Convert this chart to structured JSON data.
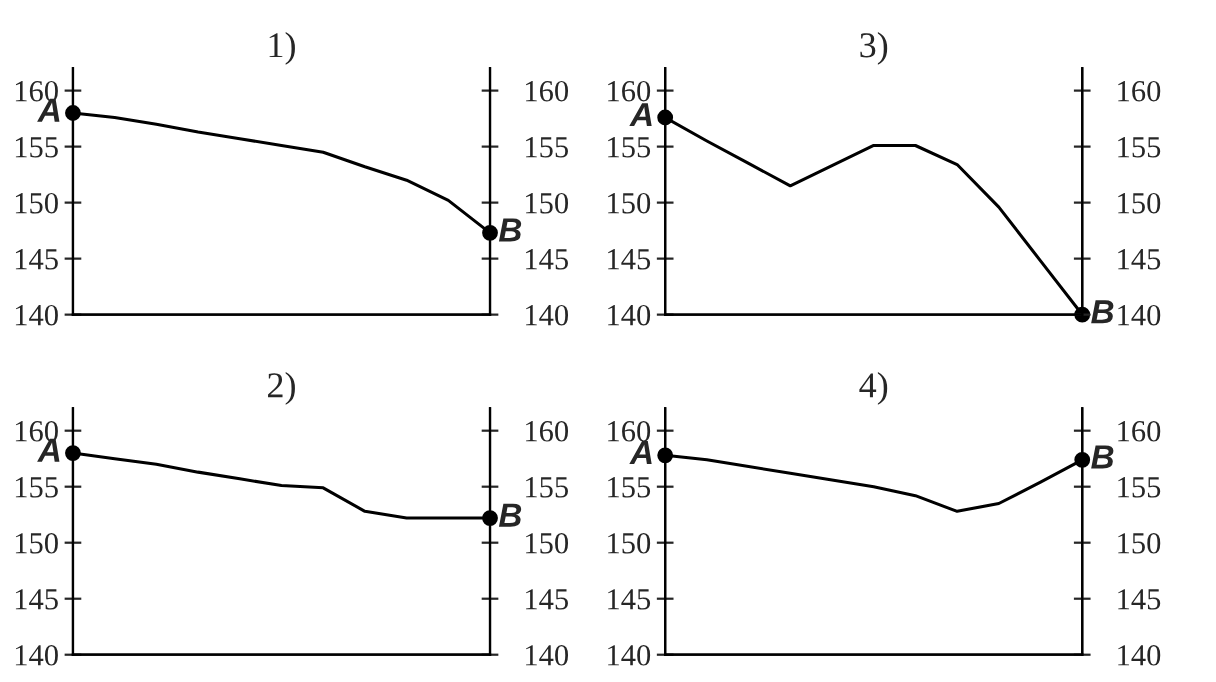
{
  "chart_data": [
    {
      "type": "line",
      "title": "1)",
      "categories": [
        null,
        null,
        null,
        null,
        null,
        null,
        null,
        null,
        null,
        null,
        null
      ],
      "series": [
        {
          "color": "#000000",
          "values": [
            158,
            157.6,
            157.0,
            156.3,
            155.7,
            155.1,
            154.5,
            153.2,
            152.0,
            150.2,
            147.3
          ]
        },
        {
          "type": "scatter",
          "color": "#000000",
          "values": [
            158,
            null,
            null,
            null,
            null,
            null,
            null,
            null,
            null,
            null,
            147.3
          ]
        }
      ],
      "ylim": [
        140,
        162
      ],
      "yticks": [
        140,
        145,
        150,
        155,
        160
      ],
      "y2lim": [
        140,
        162
      ],
      "y2ticks": [
        140,
        145,
        150,
        155,
        160
      ],
      "annotations": [
        "A",
        "B"
      ]
    },
    {
      "type": "line",
      "title": "2)",
      "categories": [
        null,
        null,
        null,
        null,
        null,
        null,
        null,
        null,
        null,
        null,
        null
      ],
      "series": [
        {
          "color": "#000000",
          "values": [
            158,
            157.5,
            157.0,
            156.3,
            155.7,
            155.1,
            154.9,
            152.8,
            152.2,
            152.2,
            152.2
          ]
        },
        {
          "type": "scatter",
          "color": "#000000",
          "values": [
            158,
            null,
            null,
            null,
            null,
            null,
            null,
            null,
            null,
            null,
            152.2
          ]
        }
      ],
      "ylim": [
        140,
        162
      ],
      "yticks": [
        140,
        145,
        150,
        155,
        160
      ],
      "y2lim": [
        140,
        162
      ],
      "y2ticks": [
        140,
        145,
        150,
        155,
        160
      ],
      "annotations": [
        "A",
        "B"
      ]
    },
    {
      "type": "line",
      "title": "3)",
      "categories": [
        null,
        null,
        null,
        null,
        null,
        null,
        null,
        null,
        null,
        null,
        null
      ],
      "series": [
        {
          "color": "#000000",
          "values": [
            157.6,
            155.5,
            153.5,
            151.5,
            153.3,
            155.1,
            155.1,
            153.4,
            149.6,
            144.8,
            140
          ]
        },
        {
          "type": "scatter",
          "color": "#000000",
          "values": [
            157.6,
            null,
            null,
            null,
            null,
            null,
            null,
            null,
            null,
            null,
            140
          ]
        }
      ],
      "ylim": [
        140,
        162
      ],
      "yticks": [
        140,
        145,
        150,
        155,
        160
      ],
      "y2lim": [
        140,
        162
      ],
      "y2ticks": [
        140,
        145,
        150,
        155,
        160
      ],
      "annotations": [
        "A",
        "B"
      ]
    },
    {
      "type": "line",
      "title": "4)",
      "categories": [
        null,
        null,
        null,
        null,
        null,
        null,
        null,
        null,
        null,
        null,
        null
      ],
      "series": [
        {
          "color": "#000000",
          "values": [
            157.8,
            157.4,
            156.8,
            156.2,
            155.6,
            155.0,
            154.2,
            152.8,
            153.5,
            155.4,
            157.4
          ]
        },
        {
          "type": "scatter",
          "color": "#000000",
          "values": [
            157.8,
            null,
            null,
            null,
            null,
            null,
            null,
            null,
            null,
            null,
            157.4
          ]
        }
      ],
      "ylim": [
        140,
        162
      ],
      "yticks": [
        140,
        145,
        150,
        155,
        160
      ],
      "y2lim": [
        140,
        162
      ],
      "y2ticks": [
        140,
        145,
        150,
        155,
        160
      ],
      "annotations": [
        "A",
        "B"
      ]
    }
  ]
}
